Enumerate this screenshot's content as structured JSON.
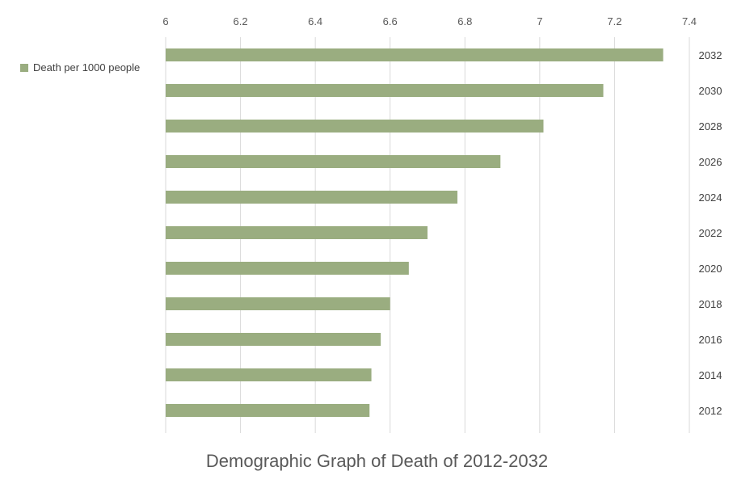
{
  "chart_data": {
    "type": "bar",
    "orientation": "horizontal",
    "title": "Demographic Graph of Death of 2012-2032",
    "categories": [
      "2012",
      "2014",
      "2016",
      "2018",
      "2020",
      "2022",
      "2024",
      "2026",
      "2028",
      "2030",
      "2032"
    ],
    "series": [
      {
        "name": "Death per 1000 people",
        "values": [
          6.545,
          6.55,
          6.575,
          6.6,
          6.65,
          6.7,
          6.78,
          6.895,
          7.01,
          7.17,
          7.33
        ]
      }
    ],
    "xlim": [
      6,
      7.4
    ],
    "xticks": [
      "6",
      "6.2",
      "6.4",
      "6.6",
      "6.8",
      "7",
      "7.2",
      "7.4"
    ],
    "x_axis_position": "top",
    "category_axis_position": "right",
    "category_order": "2012 at bottom, 2032 at top",
    "grid": true,
    "legend_position": "left",
    "colors": {
      "bar": "#9aad80",
      "grid": "#d9d9d9",
      "text": "#595959"
    }
  }
}
